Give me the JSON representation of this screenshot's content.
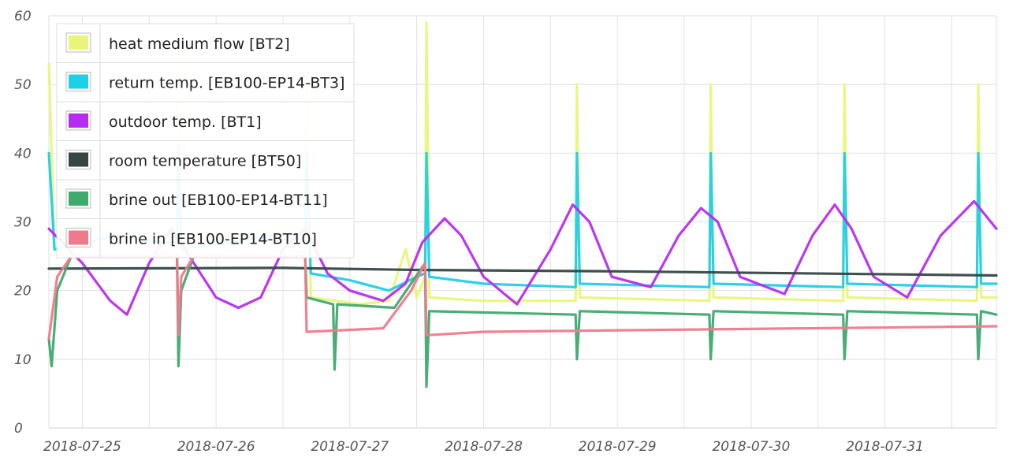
{
  "chart_data": {
    "type": "line",
    "title": "",
    "xlabel": "",
    "ylabel": "",
    "xlim": [
      "2018-07-24T18:00",
      "2018-07-31T20:00"
    ],
    "ylim": [
      0,
      60
    ],
    "grid": true,
    "legend_position": "top-left",
    "y_ticks": [
      "0",
      "10",
      "20",
      "30",
      "40",
      "50",
      "60"
    ],
    "x_ticks": [
      "2018-07-25",
      "2018-07-26",
      "2018-07-27",
      "2018-07-28",
      "2018-07-29",
      "2018-07-30",
      "2018-07-31"
    ],
    "series": [
      {
        "name": "heat medium flow [BT2]",
        "color": "#e8f57a",
        "points": [
          [
            "2018-07-24T18:00",
            53
          ],
          [
            "2018-07-24T19:00",
            26
          ],
          [
            "2018-07-25T06:00",
            29
          ],
          [
            "2018-07-25T14:00",
            28
          ],
          [
            "2018-07-25T17:00",
            28
          ],
          [
            "2018-07-25T17:15",
            55
          ],
          [
            "2018-07-25T17:45",
            27
          ],
          [
            "2018-07-26T10:00",
            29
          ],
          [
            "2018-07-26T16:00",
            29
          ],
          [
            "2018-07-26T16:15",
            52
          ],
          [
            "2018-07-26T17:00",
            19
          ],
          [
            "2018-07-27T02:00",
            18
          ],
          [
            "2018-07-27T07:00",
            18.5
          ],
          [
            "2018-07-27T10:00",
            26
          ],
          [
            "2018-07-27T12:00",
            19
          ],
          [
            "2018-07-27T13:30",
            22
          ],
          [
            "2018-07-27T13:45",
            59
          ],
          [
            "2018-07-27T14:15",
            19
          ],
          [
            "2018-07-28T00:00",
            18.5
          ],
          [
            "2018-07-28T16:30",
            18.5
          ],
          [
            "2018-07-28T16:45",
            50
          ],
          [
            "2018-07-28T17:15",
            19
          ],
          [
            "2018-07-29T16:30",
            18.5
          ],
          [
            "2018-07-29T16:45",
            50
          ],
          [
            "2018-07-29T17:15",
            19
          ],
          [
            "2018-07-30T16:30",
            18.5
          ],
          [
            "2018-07-30T16:45",
            50
          ],
          [
            "2018-07-30T17:15",
            19
          ],
          [
            "2018-07-31T16:30",
            18.5
          ],
          [
            "2018-07-31T16:45",
            50
          ],
          [
            "2018-07-31T17:15",
            19
          ],
          [
            "2018-07-31T20:00",
            19
          ]
        ]
      },
      {
        "name": "return temp. [EB100-EP14-BT3]",
        "color": "#1ecfe8",
        "points": [
          [
            "2018-07-24T18:00",
            40
          ],
          [
            "2018-07-24T19:00",
            26
          ],
          [
            "2018-07-25T06:00",
            28
          ],
          [
            "2018-07-25T14:00",
            27
          ],
          [
            "2018-07-25T17:00",
            27
          ],
          [
            "2018-07-25T17:15",
            41
          ],
          [
            "2018-07-25T17:45",
            26
          ],
          [
            "2018-07-26T10:00",
            28
          ],
          [
            "2018-07-26T16:00",
            28
          ],
          [
            "2018-07-26T16:15",
            40
          ],
          [
            "2018-07-26T17:00",
            22.5
          ],
          [
            "2018-07-27T00:00",
            21.5
          ],
          [
            "2018-07-27T07:00",
            20
          ],
          [
            "2018-07-27T12:00",
            22
          ],
          [
            "2018-07-27T13:30",
            22.5
          ],
          [
            "2018-07-27T13:45",
            40
          ],
          [
            "2018-07-27T14:15",
            22
          ],
          [
            "2018-07-28T00:00",
            21
          ],
          [
            "2018-07-28T16:30",
            20.5
          ],
          [
            "2018-07-28T16:45",
            40
          ],
          [
            "2018-07-28T17:15",
            21
          ],
          [
            "2018-07-29T16:30",
            20.5
          ],
          [
            "2018-07-29T16:45",
            40
          ],
          [
            "2018-07-29T17:15",
            21
          ],
          [
            "2018-07-30T16:30",
            20.5
          ],
          [
            "2018-07-30T16:45",
            40
          ],
          [
            "2018-07-30T17:15",
            21
          ],
          [
            "2018-07-31T16:30",
            20.5
          ],
          [
            "2018-07-31T16:45",
            40
          ],
          [
            "2018-07-31T17:15",
            21
          ],
          [
            "2018-07-31T20:00",
            21
          ]
        ]
      },
      {
        "name": "outdoor temp. [BT1]",
        "color": "#b72cf0",
        "points": [
          [
            "2018-07-24T18:00",
            29
          ],
          [
            "2018-07-25T00:00",
            24
          ],
          [
            "2018-07-25T05:00",
            18.5
          ],
          [
            "2018-07-25T08:00",
            16.5
          ],
          [
            "2018-07-25T12:00",
            24
          ],
          [
            "2018-07-25T16:00",
            29
          ],
          [
            "2018-07-25T20:00",
            24
          ],
          [
            "2018-07-26T00:00",
            19
          ],
          [
            "2018-07-26T04:00",
            17.5
          ],
          [
            "2018-07-26T08:00",
            19
          ],
          [
            "2018-07-26T12:00",
            26
          ],
          [
            "2018-07-26T16:00",
            29
          ],
          [
            "2018-07-26T20:00",
            22.5
          ],
          [
            "2018-07-27T00:00",
            20
          ],
          [
            "2018-07-27T06:00",
            18.5
          ],
          [
            "2018-07-27T10:00",
            21
          ],
          [
            "2018-07-27T13:00",
            27
          ],
          [
            "2018-07-27T17:00",
            30.5
          ],
          [
            "2018-07-27T20:00",
            28
          ],
          [
            "2018-07-28T00:00",
            22
          ],
          [
            "2018-07-28T06:00",
            18
          ],
          [
            "2018-07-28T12:00",
            26
          ],
          [
            "2018-07-28T16:00",
            32.5
          ],
          [
            "2018-07-28T19:00",
            30
          ],
          [
            "2018-07-28T23:00",
            22
          ],
          [
            "2018-07-29T06:00",
            20.5
          ],
          [
            "2018-07-29T11:00",
            28
          ],
          [
            "2018-07-29T15:00",
            32
          ],
          [
            "2018-07-29T18:00",
            30
          ],
          [
            "2018-07-29T22:00",
            22
          ],
          [
            "2018-07-30T06:00",
            19.5
          ],
          [
            "2018-07-30T11:00",
            28
          ],
          [
            "2018-07-30T15:00",
            32.5
          ],
          [
            "2018-07-30T18:00",
            29
          ],
          [
            "2018-07-30T22:00",
            22
          ],
          [
            "2018-07-31T04:00",
            19
          ],
          [
            "2018-07-31T10:00",
            28
          ],
          [
            "2018-07-31T16:00",
            33
          ],
          [
            "2018-07-31T20:00",
            29
          ]
        ]
      },
      {
        "name": "room temperature [BT50]",
        "color": "#364646",
        "points": [
          [
            "2018-07-24T18:00",
            23.2
          ],
          [
            "2018-07-26T12:00",
            23.3
          ],
          [
            "2018-07-27T12:00",
            23
          ],
          [
            "2018-07-29T00:00",
            22.8
          ],
          [
            "2018-07-31T20:00",
            22.2
          ]
        ]
      },
      {
        "name": "brine out [EB100-EP14-BT11]",
        "color": "#3faa6e",
        "points": [
          [
            "2018-07-24T18:00",
            13
          ],
          [
            "2018-07-24T18:30",
            9
          ],
          [
            "2018-07-24T19:30",
            20
          ],
          [
            "2018-07-24T22:00",
            25
          ],
          [
            "2018-07-25T17:00",
            25
          ],
          [
            "2018-07-25T17:15",
            9
          ],
          [
            "2018-07-25T17:45",
            20
          ],
          [
            "2018-07-25T20:00",
            25
          ],
          [
            "2018-07-26T16:00",
            25
          ],
          [
            "2018-07-26T16:15",
            19
          ],
          [
            "2018-07-26T21:00",
            18
          ],
          [
            "2018-07-26T21:15",
            8.5
          ],
          [
            "2018-07-26T21:45",
            18
          ],
          [
            "2018-07-27T08:00",
            17.5
          ],
          [
            "2018-07-27T13:30",
            24
          ],
          [
            "2018-07-27T13:45",
            6
          ],
          [
            "2018-07-27T14:15",
            17
          ],
          [
            "2018-07-28T16:30",
            16.5
          ],
          [
            "2018-07-28T16:45",
            10
          ],
          [
            "2018-07-28T17:15",
            17
          ],
          [
            "2018-07-29T16:30",
            16.5
          ],
          [
            "2018-07-29T16:45",
            10
          ],
          [
            "2018-07-29T17:15",
            17
          ],
          [
            "2018-07-30T16:30",
            16.5
          ],
          [
            "2018-07-30T16:45",
            10
          ],
          [
            "2018-07-30T17:15",
            17
          ],
          [
            "2018-07-31T16:30",
            16.5
          ],
          [
            "2018-07-31T16:45",
            10
          ],
          [
            "2018-07-31T17:15",
            17
          ],
          [
            "2018-07-31T20:00",
            16.5
          ]
        ]
      },
      {
        "name": "brine in [EB100-EP14-BT10]",
        "color": "#ef7a8c",
        "points": [
          [
            "2018-07-24T18:00",
            13
          ],
          [
            "2018-07-24T19:30",
            22
          ],
          [
            "2018-07-24T22:00",
            25
          ],
          [
            "2018-07-25T17:00",
            25
          ],
          [
            "2018-07-25T17:15",
            13.5
          ],
          [
            "2018-07-25T17:45",
            22
          ],
          [
            "2018-07-25T20:00",
            25
          ],
          [
            "2018-07-26T16:00",
            25
          ],
          [
            "2018-07-26T16:15",
            14
          ],
          [
            "2018-07-27T06:00",
            14.5
          ],
          [
            "2018-07-27T11:00",
            20
          ],
          [
            "2018-07-27T13:30",
            24
          ],
          [
            "2018-07-27T13:45",
            13.5
          ],
          [
            "2018-07-28T00:00",
            14
          ],
          [
            "2018-07-31T20:00",
            14.8
          ]
        ]
      }
    ]
  }
}
